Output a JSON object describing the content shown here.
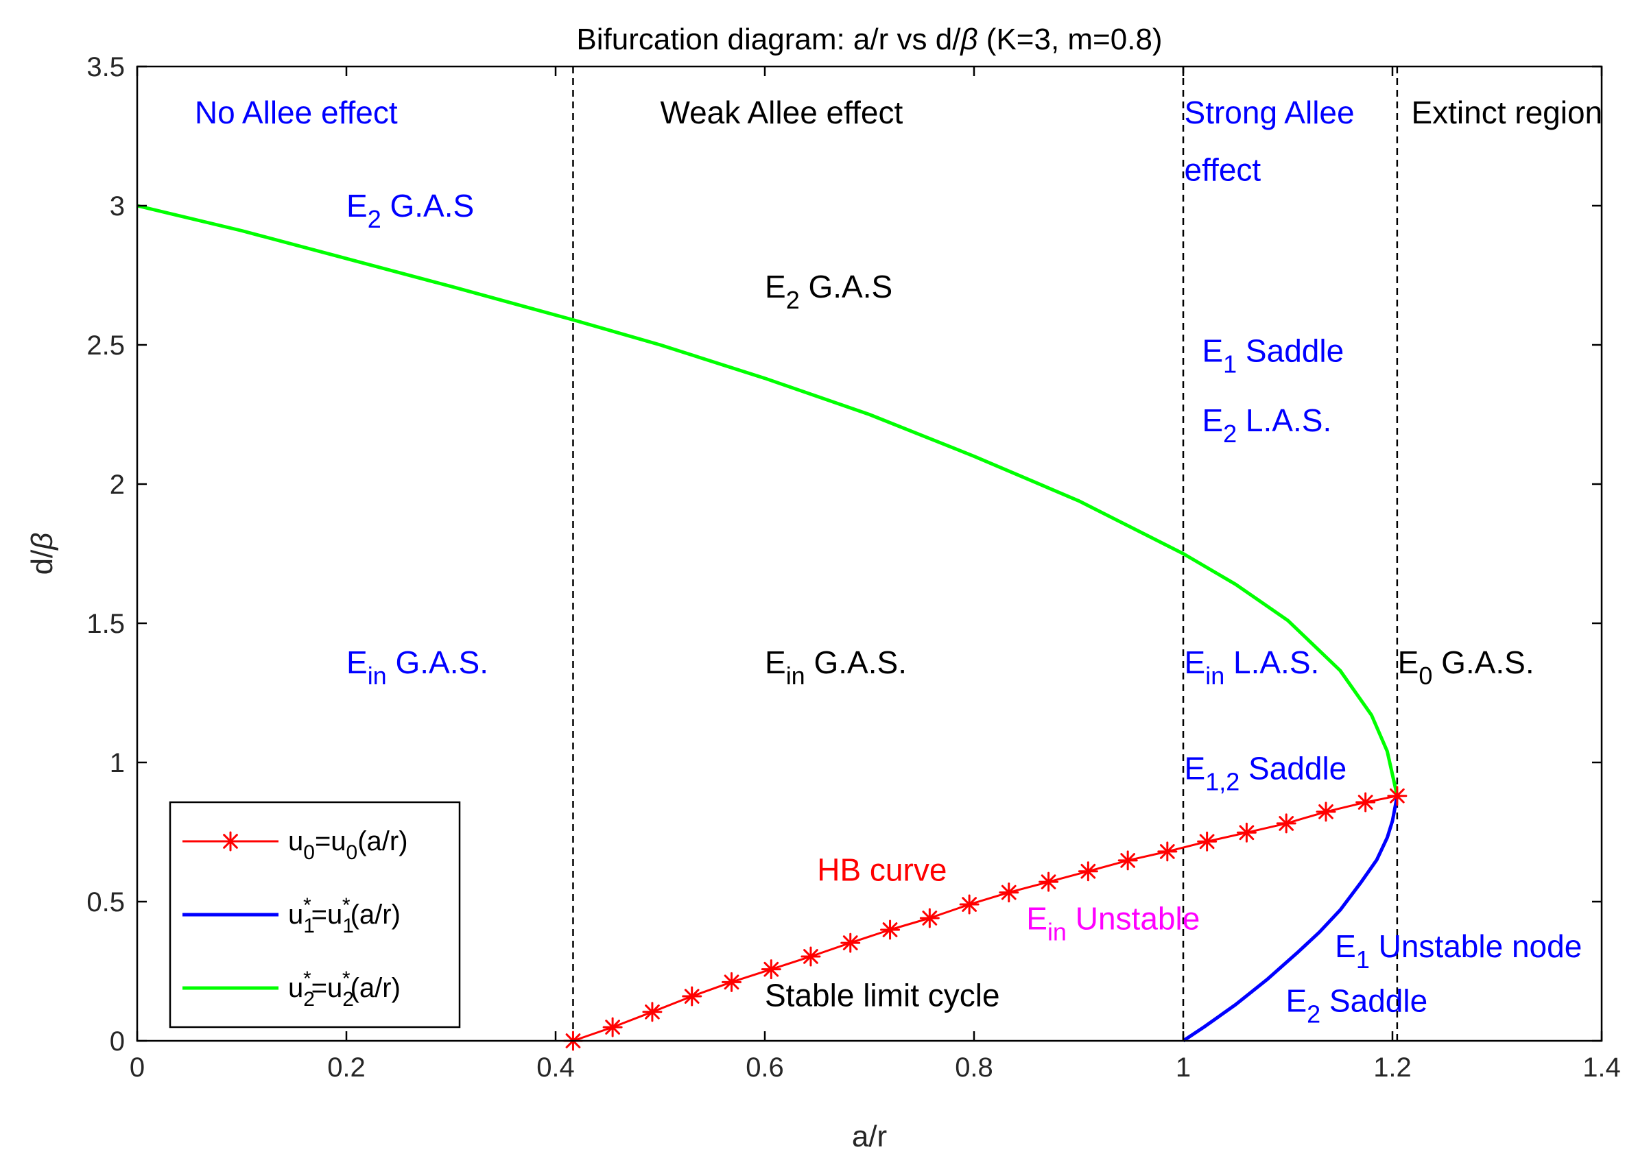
{
  "chart_data": {
    "type": "line",
    "title_parts": [
      "Bifurcation diagram: a/r vs d/",
      "β",
      " (K=3, m=0.8)"
    ],
    "xlabel": "a/r",
    "ylabel_parts": [
      "d/",
      "β"
    ],
    "xlim": [
      0,
      1.4
    ],
    "ylim": [
      0,
      3.5
    ],
    "xticks": [
      0,
      0.2,
      0.4,
      0.6,
      0.8,
      1,
      1.2,
      1.4
    ],
    "xtick_labels": [
      "0",
      "0.2",
      "0.4",
      "0.6",
      "0.8",
      "1",
      "1.2",
      "1.4"
    ],
    "yticks": [
      0,
      0.5,
      1,
      1.5,
      2,
      2.5,
      3,
      3.5
    ],
    "ytick_labels": [
      "0",
      "0.5",
      "1",
      "1.5",
      "2",
      "2.5",
      "3",
      "3.5"
    ],
    "grid": false,
    "vlines": [
      0.4167,
      1.0,
      1.2045
    ],
    "series": [
      {
        "key": "u0",
        "color": "#ff0000",
        "marker": "asterisk",
        "x": [
          0.4167,
          0.4545,
          0.4924,
          0.5303,
          0.5682,
          0.6061,
          0.6439,
          0.6818,
          0.7197,
          0.7576,
          0.7955,
          0.8333,
          0.8712,
          0.9091,
          0.947,
          0.9848,
          1.0227,
          1.0606,
          1.0985,
          1.1364,
          1.1742,
          1.2045
        ],
        "y": [
          0.0,
          0.049,
          0.104,
          0.16,
          0.211,
          0.257,
          0.303,
          0.352,
          0.399,
          0.441,
          0.49,
          0.533,
          0.571,
          0.609,
          0.648,
          0.68,
          0.716,
          0.748,
          0.781,
          0.823,
          0.857,
          0.88
        ]
      },
      {
        "key": "u1",
        "color": "#0000ff",
        "x": [
          1.0,
          1.02,
          1.05,
          1.08,
          1.11,
          1.13,
          1.15,
          1.17,
          1.185,
          1.195,
          1.2,
          1.2045
        ],
        "y": [
          0.0,
          0.05,
          0.13,
          0.22,
          0.32,
          0.39,
          0.47,
          0.57,
          0.65,
          0.73,
          0.79,
          0.88
        ]
      },
      {
        "key": "u2",
        "color": "#00ff00",
        "x": [
          0.0,
          0.1,
          0.2,
          0.3,
          0.4167,
          0.5,
          0.6,
          0.7,
          0.8,
          0.9,
          1.0,
          1.05,
          1.1,
          1.15,
          1.18,
          1.195,
          1.2045
        ],
        "y": [
          3.0,
          2.91,
          2.81,
          2.71,
          2.59,
          2.5,
          2.38,
          2.25,
          2.1,
          1.94,
          1.75,
          1.64,
          1.51,
          1.33,
          1.17,
          1.04,
          0.88
        ]
      }
    ],
    "legend": {
      "location": "bottom-left",
      "entries": [
        {
          "key": "u0",
          "label_parts": [
            "u",
            "0",
            "=u",
            "0",
            "(a/r)"
          ]
        },
        {
          "key": "u1",
          "label_parts": [
            "u",
            "1",
            "*",
            "=u",
            "1",
            "*",
            "(a/r)"
          ]
        },
        {
          "key": "u2",
          "label_parts": [
            "u",
            "2",
            "*",
            "=u",
            "2",
            "*",
            "(a/r)"
          ]
        }
      ]
    },
    "annotations": {
      "no_allee": {
        "text": "No Allee effect",
        "color": "#0000ff",
        "x": 0.055,
        "y": 3.295
      },
      "weak_allee": {
        "text": "Weak Allee effect",
        "color": "#000000",
        "x": 0.5,
        "y": 3.295
      },
      "strong_allee_1": {
        "text": "Strong Allee",
        "color": "#0000ff",
        "x": 1.001,
        "y": 3.295
      },
      "strong_allee_2": {
        "text": "effect",
        "color": "#0000ff",
        "x": 1.001,
        "y": 3.09
      },
      "extinct": {
        "text": "Extinct region",
        "color": "#000000",
        "x": 1.218,
        "y": 3.295
      },
      "e2_gas_left": {
        "main": "E",
        "sub": "2",
        "rest": " G.A.S",
        "color": "#0000ff",
        "x": 0.2,
        "y": 2.96
      },
      "e2_gas_mid": {
        "main": "E",
        "sub": "2",
        "rest": " G.A.S",
        "color": "#000000",
        "x": 0.6,
        "y": 2.67
      },
      "e1_saddle_top": {
        "main": "E",
        "sub": "1",
        "rest": " Saddle",
        "color": "#0000ff",
        "x": 1.018,
        "y": 2.44
      },
      "e2_las": {
        "main": "E",
        "sub": "2",
        "rest": " L.A.S.",
        "color": "#0000ff",
        "x": 1.018,
        "y": 2.19
      },
      "ein_gas_left": {
        "main": "E",
        "sub": "in",
        "rest": " G.A.S.",
        "color": "#0000ff",
        "x": 0.2,
        "y": 1.32
      },
      "ein_gas_mid": {
        "main": "E",
        "sub": "in",
        "rest": " G.A.S.",
        "color": "#000000",
        "x": 0.6,
        "y": 1.32
      },
      "ein_las": {
        "main": "E",
        "sub": "in",
        "rest": " L.A.S.",
        "color": "#0000ff",
        "x": 1.001,
        "y": 1.32
      },
      "e0_gas": {
        "main": "E",
        "sub": "0",
        "rest": " G.A.S.",
        "color": "#000000",
        "x": 1.205,
        "y": 1.32
      },
      "e12_saddle": {
        "main": "E",
        "sub": "1,2",
        "rest": " Saddle",
        "color": "#0000ff",
        "x": 1.001,
        "y": 0.94
      },
      "hb_curve": {
        "text": "HB curve",
        "color": "#ff0000",
        "x": 0.65,
        "y": 0.575
      },
      "ein_unstable": {
        "main": "E",
        "sub": "in",
        "rest": " Unstable",
        "color": "#ff00ff",
        "x": 0.85,
        "y": 0.4
      },
      "e1_unstable_node": {
        "main": "E",
        "sub": "1",
        "rest": " Unstable node",
        "color": "#0000ff",
        "x": 1.145,
        "y": 0.3
      },
      "stable_limit_cycle": {
        "text": "Stable limit cycle",
        "color": "#000000",
        "x": 0.6,
        "y": 0.125
      },
      "e2_saddle": {
        "main": "E",
        "sub": "2",
        "rest": " Saddle",
        "color": "#0000ff",
        "x": 1.098,
        "y": 0.105
      }
    }
  }
}
